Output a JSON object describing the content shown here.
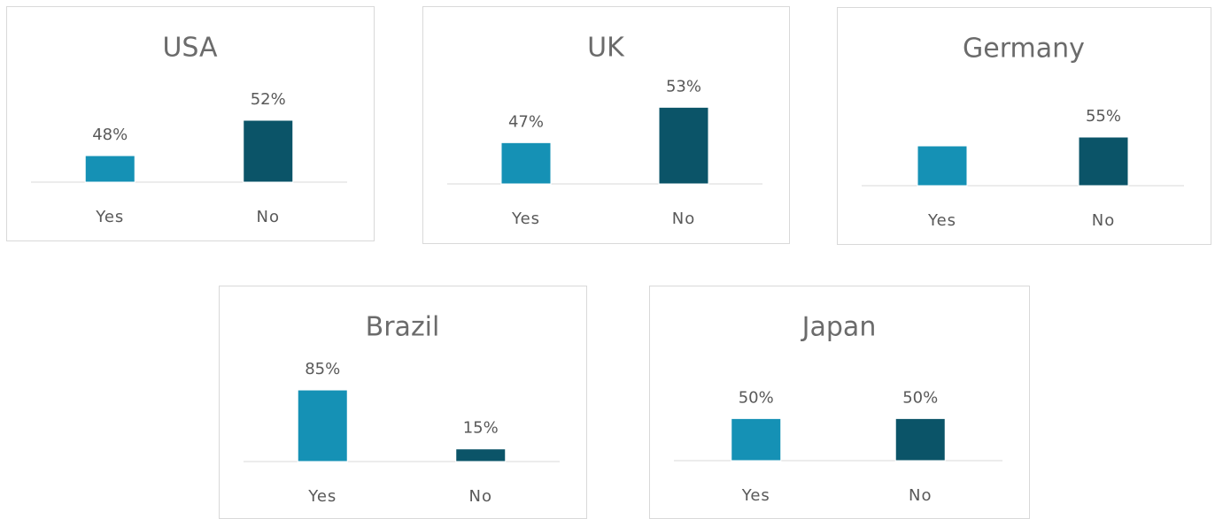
{
  "chart_data": [
    {
      "type": "bar",
      "title": "USA",
      "categories": [
        "Yes",
        "No"
      ],
      "values": [
        48,
        52
      ],
      "value_labels": [
        "48%",
        "52%"
      ],
      "colors": [
        "#1591b5",
        "#0b5468"
      ],
      "ylim": [
        45,
        55
      ]
    },
    {
      "type": "bar",
      "title": "UK",
      "categories": [
        "Yes",
        "No"
      ],
      "values": [
        47,
        53
      ],
      "value_labels": [
        "47%",
        "53%"
      ],
      "colors": [
        "#1591b5",
        "#0b5468"
      ],
      "ylim": [
        40,
        55
      ]
    },
    {
      "type": "bar",
      "title": "Germany",
      "categories": [
        "Yes",
        "No"
      ],
      "values": [
        45,
        55
      ],
      "value_labels": [
        null,
        "55%"
      ],
      "colors": [
        "#1591b5",
        "#0b5468"
      ],
      "ylim": [
        0,
        100
      ]
    },
    {
      "type": "bar",
      "title": "Brazil",
      "categories": [
        "Yes",
        "No"
      ],
      "values": [
        85,
        15
      ],
      "value_labels": [
        "85%",
        "15%"
      ],
      "colors": [
        "#1591b5",
        "#0b5468"
      ],
      "ylim": [
        0,
        105
      ]
    },
    {
      "type": "bar",
      "title": "Japan",
      "categories": [
        "Yes",
        "No"
      ],
      "values": [
        50,
        50
      ],
      "value_labels": [
        "50%",
        "50%"
      ],
      "colors": [
        "#1591b5",
        "#0b5468"
      ],
      "ylim": [
        0,
        105
      ]
    }
  ]
}
